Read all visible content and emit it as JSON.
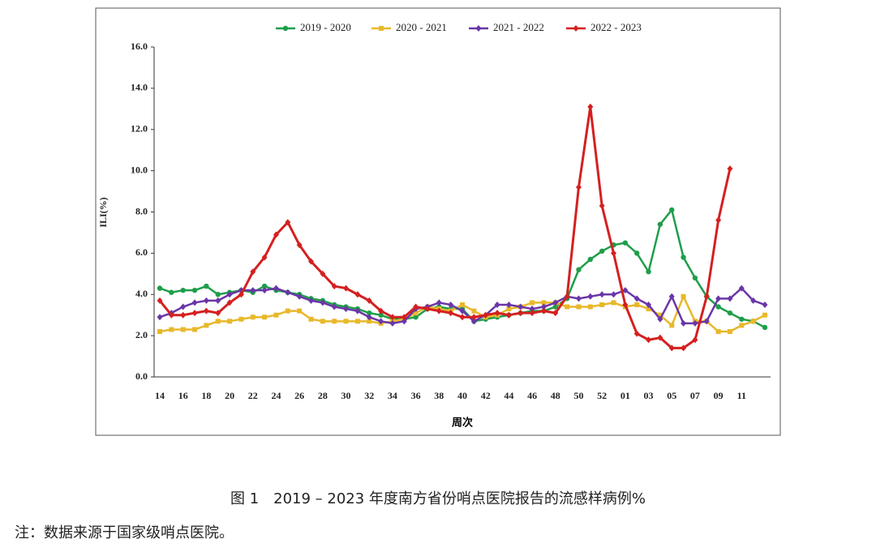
{
  "chart_data": {
    "type": "line",
    "y_label": "ILI(%)",
    "x_label": "周次",
    "caption": "图 1　2019 – 2023 年度南方省份哨点医院报告的流感样病例%",
    "note": "注：数据来源于国家级哨点医院。",
    "categories": [
      "14",
      null,
      "16",
      null,
      "18",
      null,
      "20",
      null,
      "22",
      null,
      "24",
      null,
      "26",
      null,
      "28",
      null,
      "30",
      null,
      "32",
      null,
      "34",
      null,
      "36",
      null,
      "38",
      null,
      "40",
      null,
      "42",
      null,
      "44",
      null,
      "46",
      null,
      "48",
      null,
      "50",
      null,
      "52",
      null,
      "01",
      null,
      "03",
      null,
      "05",
      null,
      "07",
      null,
      "09",
      null,
      "11",
      null,
      null
    ],
    "ylim": [
      0,
      16
    ],
    "yticks": [
      {
        "value": 0,
        "label": "0.0"
      },
      {
        "value": 2,
        "label": "2.0"
      },
      {
        "value": 4,
        "label": "4.0"
      },
      {
        "value": 6,
        "label": "6.0"
      },
      {
        "value": 8,
        "label": "8.0"
      },
      {
        "value": 10,
        "label": "10.0"
      },
      {
        "value": 12,
        "label": "12.0"
      },
      {
        "value": 14,
        "label": "14.0"
      },
      {
        "value": 16,
        "label": "16.0"
      }
    ],
    "legend": "top",
    "series": [
      {
        "name": "2019 - 2020",
        "color": "#1e9e4a",
        "marker": "circle",
        "values": [
          4.3,
          4.1,
          4.2,
          4.2,
          4.4,
          4.0,
          4.1,
          4.2,
          4.1,
          4.4,
          4.2,
          4.1,
          4.0,
          3.8,
          3.7,
          3.5,
          3.4,
          3.3,
          3.1,
          3.0,
          2.8,
          2.8,
          2.9,
          3.3,
          3.4,
          3.3,
          3.3,
          2.7,
          2.8,
          2.9,
          3.0,
          3.1,
          3.2,
          3.2,
          3.4,
          3.8,
          5.2,
          5.7,
          6.1,
          6.4,
          6.5,
          6.0,
          5.1,
          7.4,
          8.1,
          5.8,
          4.8,
          3.9,
          3.4,
          3.1,
          2.8,
          2.7,
          2.4
        ]
      },
      {
        "name": "2020 - 2021",
        "color": "#e8b82a",
        "marker": "square",
        "values": [
          2.2,
          2.3,
          2.3,
          2.3,
          2.5,
          2.7,
          2.7,
          2.8,
          2.9,
          2.9,
          3.0,
          3.2,
          3.2,
          2.8,
          2.7,
          2.7,
          2.7,
          2.7,
          2.7,
          2.6,
          2.7,
          2.8,
          3.1,
          3.4,
          3.3,
          3.2,
          3.5,
          3.2,
          2.9,
          3.0,
          3.3,
          3.4,
          3.6,
          3.6,
          3.6,
          3.4,
          3.4,
          3.4,
          3.5,
          3.6,
          3.4,
          3.5,
          3.3,
          3.0,
          2.5,
          3.9,
          2.7,
          2.7,
          2.2,
          2.2,
          2.5,
          2.7,
          3.0
        ]
      },
      {
        "name": "2021 - 2022",
        "color": "#6a36a8",
        "marker": "diamond",
        "values": [
          2.9,
          3.1,
          3.4,
          3.6,
          3.7,
          3.7,
          4.0,
          4.2,
          4.2,
          4.2,
          4.3,
          4.1,
          3.9,
          3.7,
          3.6,
          3.4,
          3.3,
          3.2,
          2.9,
          2.7,
          2.6,
          2.7,
          3.3,
          3.4,
          3.6,
          3.5,
          3.2,
          2.7,
          3.0,
          3.5,
          3.5,
          3.4,
          3.3,
          3.4,
          3.6,
          3.9,
          3.8,
          3.9,
          4.0,
          4.0,
          4.2,
          3.8,
          3.5,
          2.8,
          3.9,
          2.6,
          2.6,
          2.7,
          3.8,
          3.8,
          4.3,
          3.7,
          3.5
        ]
      },
      {
        "name": "2022 - 2023",
        "color": "#d42020",
        "marker": "diamond",
        "values": [
          3.7,
          3.0,
          3.0,
          3.1,
          3.2,
          3.1,
          3.6,
          4.0,
          5.1,
          5.8,
          6.9,
          7.5,
          6.4,
          5.6,
          5.0,
          4.4,
          4.3,
          4.0,
          3.7,
          3.2,
          2.9,
          2.9,
          3.4,
          3.3,
          3.2,
          3.1,
          2.9,
          2.9,
          3.0,
          3.1,
          3.0,
          3.1,
          3.1,
          3.2,
          3.1,
          3.9,
          9.2,
          13.1,
          8.3,
          6.0,
          3.5,
          2.1,
          1.8,
          1.9,
          1.4,
          1.4,
          1.8,
          3.9,
          7.6,
          10.1,
          null,
          null,
          null
        ]
      }
    ]
  }
}
